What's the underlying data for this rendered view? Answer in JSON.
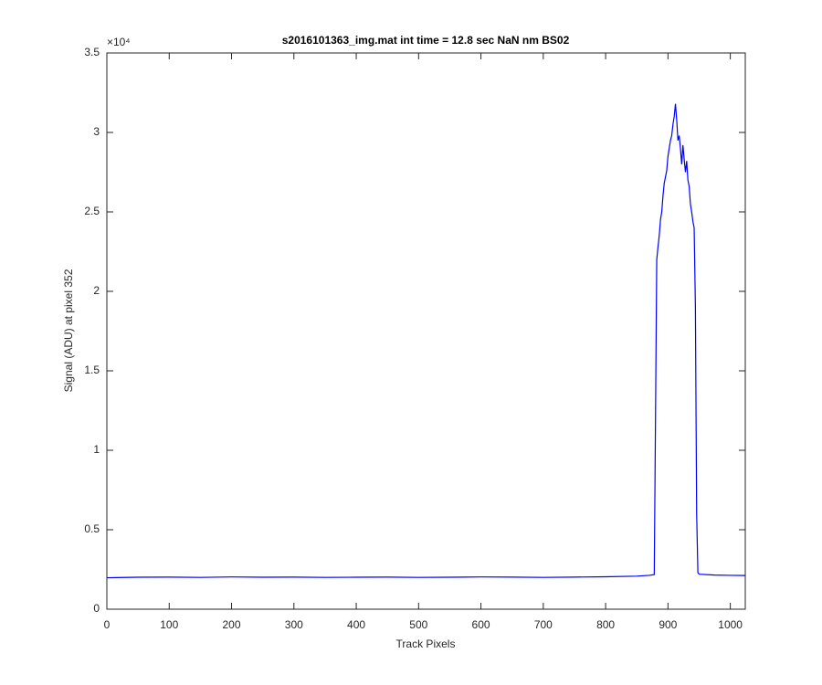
{
  "chart_data": {
    "type": "line",
    "title": "s2016101363_img.mat int time = 12.8 sec  NaN nm BS02",
    "x_label": "Track Pixels",
    "y_label": "Signal (ADU) at pixel 352",
    "y_exponent": "×10⁴",
    "xlim": [
      0,
      1024
    ],
    "xticks": [
      0,
      100,
      200,
      300,
      400,
      500,
      600,
      700,
      800,
      900,
      1000
    ],
    "ylim": [
      0,
      35000
    ],
    "yticks": [
      {
        "value": 0,
        "label": "0"
      },
      {
        "value": 5000,
        "label": "0.5"
      },
      {
        "value": 10000,
        "label": "1"
      },
      {
        "value": 15000,
        "label": "1.5"
      },
      {
        "value": 20000,
        "label": "2"
      },
      {
        "value": 25000,
        "label": "2.5"
      },
      {
        "value": 30000,
        "label": "3"
      },
      {
        "value": 35000,
        "label": "3.5"
      }
    ],
    "grid": false,
    "x": [
      0,
      50,
      100,
      150,
      200,
      250,
      300,
      350,
      400,
      450,
      500,
      550,
      600,
      650,
      700,
      750,
      800,
      850,
      870,
      878,
      880,
      882,
      884,
      886,
      888,
      890,
      892,
      894,
      896,
      898,
      900,
      902,
      904,
      906,
      908,
      910,
      912,
      914,
      916,
      918,
      920,
      922,
      924,
      926,
      928,
      930,
      932,
      934,
      936,
      938,
      940,
      942,
      944,
      946,
      948,
      950,
      975,
      1000,
      1024
    ],
    "series": [
      {
        "color": "#0000ff",
        "values": [
          1980,
          2010,
          2020,
          2000,
          2030,
          2010,
          2020,
          2000,
          2010,
          2020,
          2000,
          2010,
          2030,
          2020,
          2000,
          2020,
          2040,
          2080,
          2130,
          2180,
          12000,
          22000,
          22800,
          23500,
          24500,
          25000,
          26000,
          26800,
          27200,
          27600,
          28500,
          29000,
          29500,
          29800,
          30500,
          31000,
          31800,
          30800,
          29500,
          29800,
          29000,
          28000,
          29200,
          28300,
          27500,
          28200,
          27000,
          26600,
          25500,
          25000,
          24400,
          24000,
          19000,
          6000,
          2300,
          2200,
          2150,
          2130,
          2120
        ]
      }
    ]
  }
}
